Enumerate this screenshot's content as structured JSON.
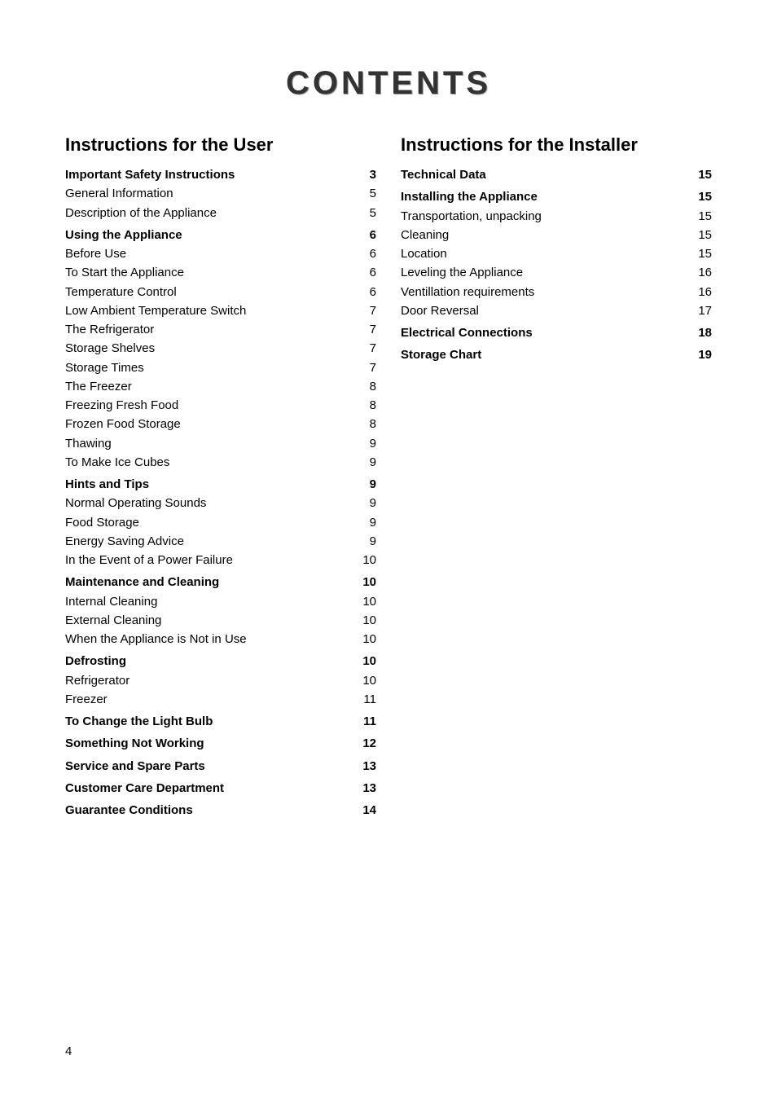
{
  "title": "CONTENTS",
  "page_number": "4",
  "colors": {
    "background": "#ffffff",
    "text": "#000000",
    "title_color": "#333333",
    "title_shadow": "#999999"
  },
  "typography": {
    "title_fontsize": 40,
    "title_letterspacing": 4,
    "section_heading_fontsize": 22,
    "body_fontsize": 15,
    "line_height": 1.55
  },
  "left_column": {
    "heading": "Instructions for the User",
    "entries": [
      {
        "label": "Important Safety Instructions",
        "page": "3",
        "bold": true
      },
      {
        "label": "General Information",
        "page": "5",
        "bold": false
      },
      {
        "label": "Description of the Appliance",
        "page": "5",
        "bold": false
      },
      {
        "label": "Using the Appliance",
        "page": "6",
        "bold": true
      },
      {
        "label": "Before Use",
        "page": "6",
        "bold": false
      },
      {
        "label": "To Start the Appliance",
        "page": "6",
        "bold": false
      },
      {
        "label": "Temperature Control",
        "page": "6",
        "bold": false
      },
      {
        "label": "Low Ambient Temperature Switch",
        "page": "7",
        "bold": false
      },
      {
        "label": "The Refrigerator",
        "page": "7",
        "bold": false
      },
      {
        "label": "Storage Shelves",
        "page": "7",
        "bold": false
      },
      {
        "label": "Storage Times",
        "page": "7",
        "bold": false
      },
      {
        "label": "The Freezer",
        "page": "8",
        "bold": false
      },
      {
        "label": "Freezing Fresh Food",
        "page": "8",
        "bold": false
      },
      {
        "label": "Frozen Food Storage",
        "page": "8",
        "bold": false
      },
      {
        "label": "Thawing",
        "page": "9",
        "bold": false
      },
      {
        "label": "To Make Ice Cubes",
        "page": "9",
        "bold": false
      },
      {
        "label": "Hints and Tips",
        "page": "9",
        "bold": true
      },
      {
        "label": "Normal Operating Sounds",
        "page": "9",
        "bold": false
      },
      {
        "label": "Food Storage",
        "page": "9",
        "bold": false
      },
      {
        "label": "Energy Saving Advice",
        "page": "9",
        "bold": false
      },
      {
        "label": "In the Event of a Power Failure",
        "page": "10",
        "bold": false
      },
      {
        "label": "Maintenance and Cleaning",
        "page": "10",
        "bold": true
      },
      {
        "label": "Internal Cleaning",
        "page": "10",
        "bold": false
      },
      {
        "label": "External Cleaning",
        "page": "10",
        "bold": false
      },
      {
        "label": "When the Appliance is Not in Use",
        "page": "10",
        "bold": false
      },
      {
        "label": "Defrosting",
        "page": "10",
        "bold": true
      },
      {
        "label": "Refrigerator",
        "page": "10",
        "bold": false
      },
      {
        "label": "Freezer",
        "page": "11",
        "bold": false
      },
      {
        "label": "To Change the Light Bulb",
        "page": "11",
        "bold": true
      },
      {
        "label": "Something Not Working",
        "page": "12",
        "bold": true
      },
      {
        "label": "Service and Spare Parts",
        "page": "13",
        "bold": true
      },
      {
        "label": "Customer Care Department",
        "page": "13",
        "bold": true
      },
      {
        "label": "Guarantee Conditions",
        "page": "14",
        "bold": true
      }
    ],
    "gaps_after_indices": [
      2,
      15,
      20,
      24,
      27,
      28,
      29,
      30,
      31
    ]
  },
  "right_column": {
    "heading": "Instructions for the Installer",
    "entries": [
      {
        "label": "Technical Data",
        "page": "15",
        "bold": true
      },
      {
        "label": "Installing the Appliance",
        "page": "15",
        "bold": true
      },
      {
        "label": "Transportation, unpacking",
        "page": "15",
        "bold": false
      },
      {
        "label": "Cleaning",
        "page": "15",
        "bold": false
      },
      {
        "label": "Location",
        "page": "15",
        "bold": false
      },
      {
        "label": "Leveling the Appliance",
        "page": "16",
        "bold": false
      },
      {
        "label": "Ventillation requirements",
        "page": "16",
        "bold": false
      },
      {
        "label": "Door Reversal",
        "page": "17",
        "bold": false
      },
      {
        "label": "Electrical Connections",
        "page": "18",
        "bold": true
      },
      {
        "label": "Storage Chart",
        "page": "19",
        "bold": true
      }
    ],
    "gaps_after_indices": [
      0,
      7,
      8
    ]
  }
}
